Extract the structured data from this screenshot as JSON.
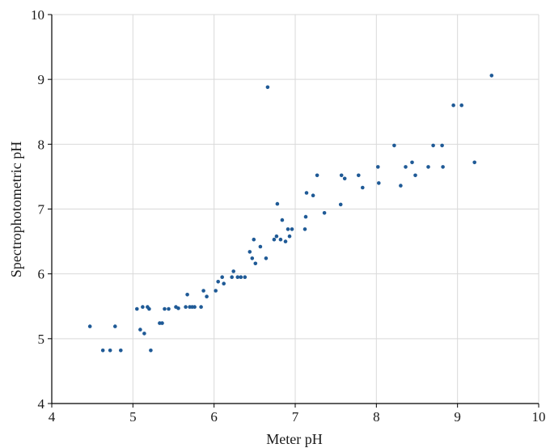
{
  "chart_data": {
    "type": "scatter",
    "title": "",
    "xlabel": "Meter pH",
    "ylabel": "Spectrophotometric pH",
    "xlim": [
      4,
      10
    ],
    "ylim": [
      4,
      10
    ],
    "x_ticks": [
      "4",
      "5",
      "6",
      "7",
      "8",
      "9",
      "10"
    ],
    "y_ticks": [
      "4",
      "5",
      "6",
      "7",
      "8",
      "9",
      "10"
    ],
    "grid": true,
    "legend": "none",
    "marker_color": "#1f5a96",
    "grid_color": "#d9d9d9",
    "axis_color": "#000000",
    "series": [
      {
        "points": [
          [
            4.47,
            5.19
          ],
          [
            4.63,
            4.82
          ],
          [
            4.72,
            4.82
          ],
          [
            4.78,
            5.19
          ],
          [
            4.85,
            4.82
          ],
          [
            5.05,
            5.46
          ],
          [
            5.09,
            5.14
          ],
          [
            5.12,
            5.49
          ],
          [
            5.14,
            5.08
          ],
          [
            5.18,
            5.49
          ],
          [
            5.2,
            5.46
          ],
          [
            5.22,
            4.82
          ],
          [
            5.33,
            5.24
          ],
          [
            5.36,
            5.24
          ],
          [
            5.39,
            5.46
          ],
          [
            5.44,
            5.46
          ],
          [
            5.53,
            5.49
          ],
          [
            5.56,
            5.47
          ],
          [
            5.65,
            5.49
          ],
          [
            5.67,
            5.68
          ],
          [
            5.7,
            5.49
          ],
          [
            5.73,
            5.49
          ],
          [
            5.76,
            5.49
          ],
          [
            5.84,
            5.49
          ],
          [
            5.87,
            5.74
          ],
          [
            5.91,
            5.65
          ],
          [
            6.02,
            5.74
          ],
          [
            6.05,
            5.88
          ],
          [
            6.1,
            5.95
          ],
          [
            6.12,
            5.85
          ],
          [
            6.22,
            5.95
          ],
          [
            6.24,
            6.04
          ],
          [
            6.29,
            5.95
          ],
          [
            6.33,
            5.95
          ],
          [
            6.38,
            5.95
          ],
          [
            6.44,
            6.34
          ],
          [
            6.47,
            6.24
          ],
          [
            6.49,
            6.53
          ],
          [
            6.51,
            6.16
          ],
          [
            6.57,
            6.42
          ],
          [
            6.64,
            6.24
          ],
          [
            6.66,
            8.88
          ],
          [
            6.74,
            6.53
          ],
          [
            6.77,
            6.58
          ],
          [
            6.78,
            7.08
          ],
          [
            6.82,
            6.53
          ],
          [
            6.84,
            6.83
          ],
          [
            6.88,
            6.5
          ],
          [
            6.91,
            6.69
          ],
          [
            6.93,
            6.58
          ],
          [
            6.96,
            6.69
          ],
          [
            7.12,
            6.69
          ],
          [
            7.13,
            6.88
          ],
          [
            7.14,
            7.25
          ],
          [
            7.22,
            7.21
          ],
          [
            7.27,
            7.52
          ],
          [
            7.36,
            6.94
          ],
          [
            7.56,
            7.07
          ],
          [
            7.57,
            7.52
          ],
          [
            7.61,
            7.47
          ],
          [
            7.78,
            7.52
          ],
          [
            7.83,
            7.33
          ],
          [
            8.02,
            7.65
          ],
          [
            8.03,
            7.4
          ],
          [
            8.22,
            7.98
          ],
          [
            8.3,
            7.36
          ],
          [
            8.36,
            7.65
          ],
          [
            8.44,
            7.72
          ],
          [
            8.48,
            7.52
          ],
          [
            8.64,
            7.65
          ],
          [
            8.7,
            7.98
          ],
          [
            8.81,
            7.98
          ],
          [
            8.82,
            7.65
          ],
          [
            8.95,
            8.6
          ],
          [
            9.05,
            8.6
          ],
          [
            9.21,
            7.72
          ],
          [
            9.42,
            9.06
          ]
        ]
      }
    ]
  }
}
